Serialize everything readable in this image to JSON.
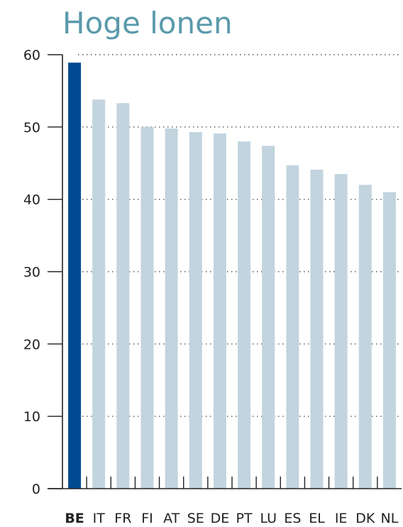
{
  "colors": {
    "title": "#5a9aab",
    "bar": "#c2d4de",
    "highlight": "#004a92",
    "grid": "#555555",
    "axis": "#222222"
  },
  "chart_data": {
    "type": "bar",
    "title": "Hoge lonen",
    "xlabel": "",
    "ylabel": "",
    "ylim": [
      0,
      60
    ],
    "yticks": [
      0,
      10,
      20,
      30,
      40,
      50,
      60
    ],
    "grid": "dotted horizontal",
    "legend": "none",
    "categories": [
      "BE",
      "IT",
      "FR",
      "FI",
      "AT",
      "SE",
      "DE",
      "PT",
      "LU",
      "ES",
      "EL",
      "IE",
      "DK",
      "NL"
    ],
    "values": [
      58.9,
      53.8,
      53.3,
      50.0,
      49.8,
      49.3,
      49.1,
      48.0,
      47.4,
      44.7,
      44.1,
      43.5,
      42.0,
      41.0
    ],
    "highlight_category": "BE"
  }
}
